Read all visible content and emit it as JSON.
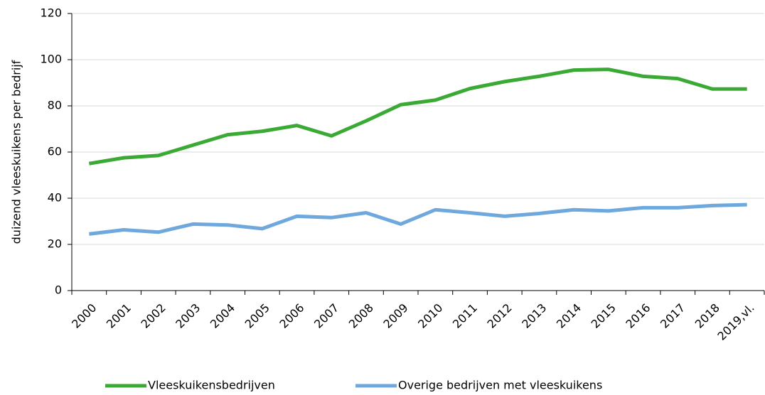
{
  "chart_data": {
    "type": "line",
    "y_label": "duizend vleeskuikens per bedrijf",
    "categories": [
      "2000",
      "2001",
      "2002",
      "2003",
      "2004",
      "2005",
      "2006",
      "2007",
      "2008",
      "2009",
      "2010",
      "2011",
      "2012",
      "2013",
      "2014",
      "2015",
      "2016",
      "2017",
      "2018",
      "2019,vl."
    ],
    "series": [
      {
        "name": "Vleeskuikensbedrijven",
        "color": "#3aaa35",
        "values": [
          55,
          57.5,
          58.5,
          63,
          67.5,
          69,
          71.5,
          67,
          73.5,
          80.5,
          82.5,
          87.5,
          90.5,
          92.8,
          95.5,
          95.8,
          92.8,
          91.8,
          87.3,
          87.3
        ]
      },
      {
        "name": "Overige bedrijven met vleeskuikens",
        "color": "#6fa8dc",
        "values": [
          24.5,
          26.3,
          25.3,
          28.8,
          28.4,
          26.8,
          32.2,
          31.6,
          33.7,
          28.8,
          35,
          33.7,
          32.2,
          33.4,
          35,
          34.5,
          35.9,
          35.9,
          36.8,
          37.2
        ]
      }
    ],
    "ylim": [
      0,
      120
    ],
    "yticks": [
      0,
      20,
      40,
      60,
      80,
      100,
      120
    ],
    "grid": true,
    "legend": "bottom"
  }
}
